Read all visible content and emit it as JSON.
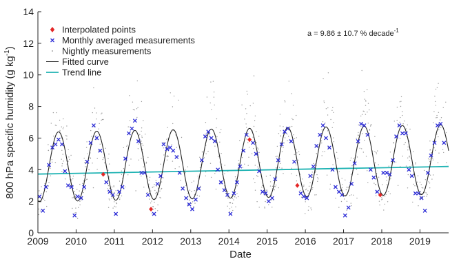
{
  "chart_data": {
    "type": "scatter",
    "xlabel": "Date",
    "ylabel": "800 hPa specific humidity (g kg",
    "ylabel_sup": "-1",
    "ylabel_close": ")",
    "xlim": [
      2009.0,
      2019.75
    ],
    "ylim": [
      0,
      14
    ],
    "xticks": [
      2009,
      2010,
      2011,
      2012,
      2013,
      2014,
      2015,
      2016,
      2017,
      2018,
      2019
    ],
    "yticks": [
      0,
      2,
      4,
      6,
      8,
      10,
      12,
      14
    ],
    "annotation": "a = 9.86 ± 10.7 % decade",
    "annotation_sup": "-1",
    "legend_position": "top-left",
    "legend": [
      {
        "label": "Interpolated points",
        "marker": "diamond",
        "color": "#e32626"
      },
      {
        "label": "Monthly averaged measurements",
        "marker": "x",
        "color": "#2b2bd6"
      },
      {
        "label": "Nightly measurements",
        "marker": "dot",
        "color": "#888888"
      },
      {
        "label": "Fitted curve",
        "marker": "line",
        "color": "#222222"
      },
      {
        "label": "Trend line",
        "marker": "line",
        "color": "#1fb3b3"
      }
    ],
    "colors": {
      "interpolated": "#e32626",
      "monthly": "#2b2bd6",
      "nightly": "#9a9a9a",
      "fitted": "#222222",
      "trend": "#1fb3b3"
    },
    "trend_line": {
      "x": [
        2009.0,
        2019.75
      ],
      "y": [
        3.72,
        4.2
      ]
    },
    "fitted_curve": {
      "mean": 4.2,
      "amplitude": 2.2,
      "peak_phase": 0.54,
      "period_years": 1
    },
    "series": [
      {
        "name": "Interpolated points",
        "x": [
          2010.71,
          2011.96,
          2014.54,
          2015.79,
          2017.96
        ],
        "y": [
          3.7,
          1.5,
          5.9,
          3.0,
          2.4
        ]
      },
      {
        "name": "Monthly averaged measurements",
        "x": [
          2009.04,
          2009.13,
          2009.21,
          2009.29,
          2009.38,
          2009.46,
          2009.54,
          2009.63,
          2009.71,
          2009.79,
          2009.88,
          2009.96,
          2010.04,
          2010.13,
          2010.21,
          2010.29,
          2010.38,
          2010.46,
          2010.54,
          2010.63,
          2010.79,
          2010.88,
          2010.96,
          2011.04,
          2011.13,
          2011.21,
          2011.29,
          2011.38,
          2011.46,
          2011.54,
          2011.63,
          2011.71,
          2011.79,
          2011.88,
          2012.04,
          2012.13,
          2012.21,
          2012.29,
          2012.38,
          2012.46,
          2012.54,
          2012.63,
          2012.71,
          2012.79,
          2012.88,
          2012.96,
          2013.04,
          2013.13,
          2013.21,
          2013.29,
          2013.38,
          2013.46,
          2013.54,
          2013.63,
          2013.71,
          2013.79,
          2013.88,
          2013.96,
          2014.04,
          2014.13,
          2014.21,
          2014.29,
          2014.38,
          2014.46,
          2014.63,
          2014.71,
          2014.79,
          2014.88,
          2014.96,
          2015.04,
          2015.13,
          2015.21,
          2015.29,
          2015.38,
          2015.46,
          2015.54,
          2015.63,
          2015.71,
          2015.88,
          2015.96,
          2016.04,
          2016.13,
          2016.21,
          2016.29,
          2016.38,
          2016.46,
          2016.54,
          2016.63,
          2016.71,
          2016.79,
          2016.88,
          2016.96,
          2017.04,
          2017.13,
          2017.21,
          2017.29,
          2017.38,
          2017.46,
          2017.54,
          2017.63,
          2017.71,
          2017.79,
          2017.88,
          2018.04,
          2018.13,
          2018.21,
          2018.29,
          2018.38,
          2018.46,
          2018.54,
          2018.63,
          2018.71,
          2018.79,
          2018.88,
          2018.96,
          2019.04,
          2019.13,
          2019.21,
          2019.29,
          2019.38,
          2019.46,
          2019.54,
          2019.63
        ],
        "y": [
          2.3,
          1.4,
          2.9,
          4.3,
          5.4,
          5.6,
          5.9,
          5.6,
          3.9,
          3.0,
          2.9,
          1.1,
          2.3,
          2.2,
          2.9,
          4.5,
          5.7,
          6.8,
          6.0,
          5.2,
          3.2,
          2.6,
          2.4,
          1.2,
          2.6,
          2.9,
          4.7,
          6.3,
          6.6,
          7.1,
          5.8,
          3.8,
          3.8,
          2.4,
          1.2,
          3.1,
          3.6,
          5.6,
          5.3,
          5.4,
          5.2,
          4.8,
          3.8,
          2.8,
          2.2,
          1.8,
          1.5,
          2.1,
          2.8,
          4.6,
          6.1,
          6.4,
          6.0,
          5.8,
          4.0,
          3.2,
          2.7,
          2.4,
          1.2,
          2.5,
          3.2,
          4.2,
          5.2,
          6.2,
          5.7,
          5.0,
          3.9,
          2.6,
          2.5,
          2.0,
          2.2,
          3.4,
          4.6,
          5.6,
          6.4,
          6.6,
          5.8,
          4.5,
          2.5,
          2.3,
          2.2,
          3.6,
          4.2,
          5.5,
          6.2,
          6.8,
          6.0,
          5.4,
          4.0,
          2.9,
          2.6,
          2.4,
          1.1,
          1.6,
          3.1,
          4.4,
          5.8,
          6.9,
          6.8,
          6.2,
          4.0,
          3.5,
          2.6,
          3.8,
          3.8,
          3.7,
          4.6,
          6.1,
          6.8,
          6.3,
          6.3,
          4.0,
          3.6,
          2.5,
          2.5,
          2.2,
          1.4,
          3.8,
          4.9,
          5.7,
          6.8,
          6.9,
          5.7
        ]
      },
      {
        "name": "Nightly measurements",
        "x": [],
        "y": []
      }
    ]
  }
}
